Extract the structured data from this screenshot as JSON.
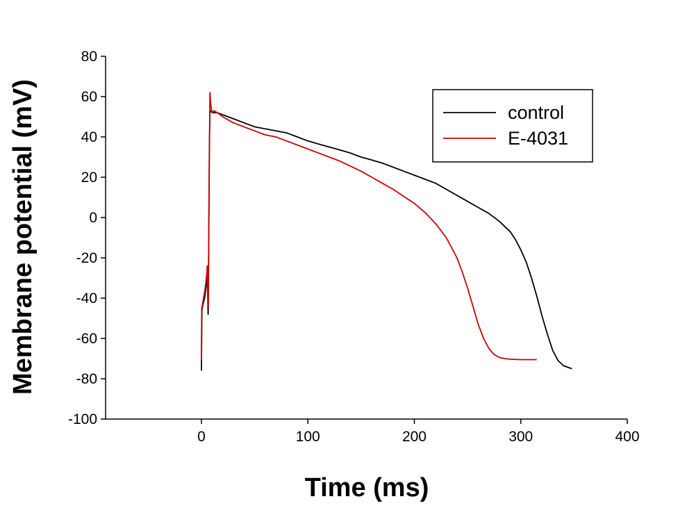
{
  "chart_data": {
    "type": "line",
    "title": "",
    "xlabel": "Time (ms)",
    "ylabel": "Membrane potential (mV)",
    "xlim": [
      -90,
      400
    ],
    "ylim": [
      -100,
      80
    ],
    "xticks": [
      0,
      100,
      200,
      300,
      400
    ],
    "yticks": [
      80,
      60,
      40,
      20,
      0,
      -20,
      -40,
      -60,
      -80,
      -100
    ],
    "grid": false,
    "legend_position": "top-right",
    "series": [
      {
        "name": "control",
        "color": "#000000",
        "x": [
          0,
          0.5,
          1,
          2,
          3,
          4,
          5,
          5.5,
          6,
          6.3,
          6.6,
          7,
          7.5,
          8,
          9,
          10,
          12,
          15,
          20,
          30,
          40,
          50,
          60,
          70,
          80,
          90,
          100,
          110,
          120,
          130,
          140,
          150,
          160,
          170,
          180,
          190,
          200,
          210,
          220,
          230,
          240,
          250,
          260,
          270,
          280,
          290,
          295,
          300,
          305,
          310,
          315,
          320,
          325,
          330,
          335,
          340,
          345,
          348
        ],
        "y": [
          -76,
          -46,
          -44,
          -42,
          -40,
          -36,
          -32,
          -28,
          -40,
          -48,
          -30,
          0,
          35,
          52,
          53,
          52,
          52,
          52,
          51,
          49,
          47,
          45,
          44,
          43,
          42,
          40,
          38,
          36.5,
          35,
          33.5,
          32,
          30,
          28.5,
          27,
          25,
          23,
          21,
          19,
          17,
          14,
          11,
          8,
          5,
          2,
          -2,
          -7,
          -11,
          -16,
          -22,
          -30,
          -39,
          -49,
          -58,
          -66,
          -71,
          -73.5,
          -74.5,
          -75
        ]
      },
      {
        "name": "E-4031",
        "color": "#cc0000",
        "x": [
          0,
          0.3,
          1,
          2,
          3,
          4,
          5,
          5.5,
          6,
          6.5,
          7,
          7.5,
          8,
          8.5,
          9,
          10,
          12,
          15,
          20,
          30,
          40,
          50,
          60,
          70,
          80,
          90,
          100,
          110,
          120,
          130,
          140,
          150,
          160,
          170,
          180,
          190,
          200,
          210,
          220,
          230,
          240,
          245,
          250,
          255,
          260,
          265,
          270,
          275,
          280,
          285,
          290,
          300,
          310,
          315
        ],
        "y": [
          -71,
          -45,
          -43,
          -40,
          -37,
          -33,
          -28,
          -24,
          -38,
          -44,
          0,
          30,
          62,
          58,
          55,
          52,
          53,
          52,
          50,
          47,
          45,
          43,
          41,
          40,
          38,
          36,
          34,
          32,
          30,
          28,
          25.5,
          23,
          20,
          17,
          14,
          10.5,
          7,
          2.5,
          -3,
          -10,
          -20,
          -27,
          -35,
          -44,
          -53,
          -60,
          -65,
          -68,
          -69.5,
          -70,
          -70.3,
          -70.5,
          -70.5,
          -70.5
        ]
      }
    ]
  }
}
